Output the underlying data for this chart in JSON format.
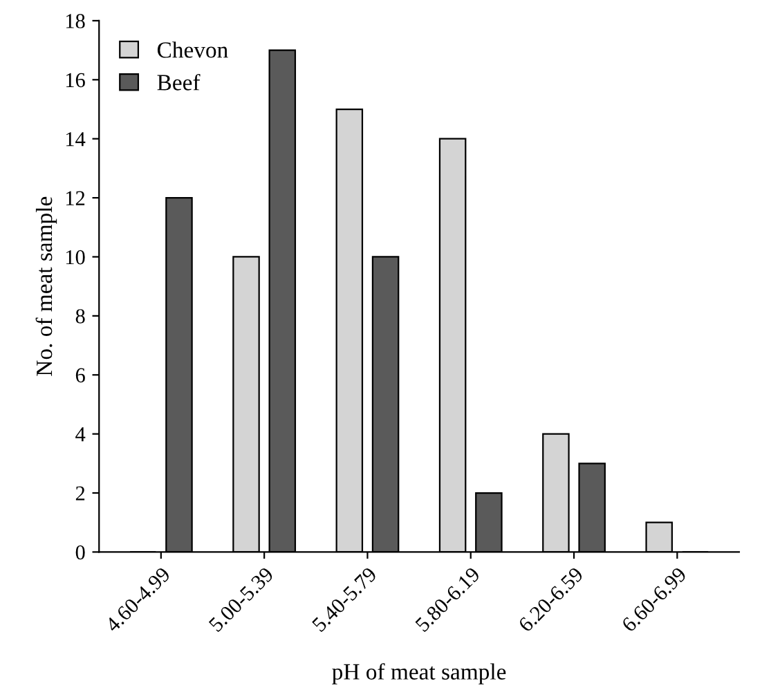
{
  "chart_data": {
    "type": "bar",
    "xlabel": "pH of meat sample",
    "ylabel": "No. of meat sample",
    "categories": [
      "4.60-4.99",
      "5.00-5.39",
      "5.40-5.79",
      "5.80-6.19",
      "6.20-6.59",
      "6.60-6.99"
    ],
    "series": [
      {
        "name": "Chevon",
        "color": "#d4d4d4",
        "values": [
          0,
          10,
          15,
          14,
          4,
          1
        ]
      },
      {
        "name": "Beef",
        "color": "#5a5a5a",
        "values": [
          12,
          17,
          10,
          2,
          3,
          0
        ]
      }
    ],
    "ylim": [
      0,
      18
    ],
    "yticks": [
      0,
      2,
      4,
      6,
      8,
      10,
      12,
      14,
      16,
      18
    ],
    "grid": false,
    "legend": "top left"
  }
}
